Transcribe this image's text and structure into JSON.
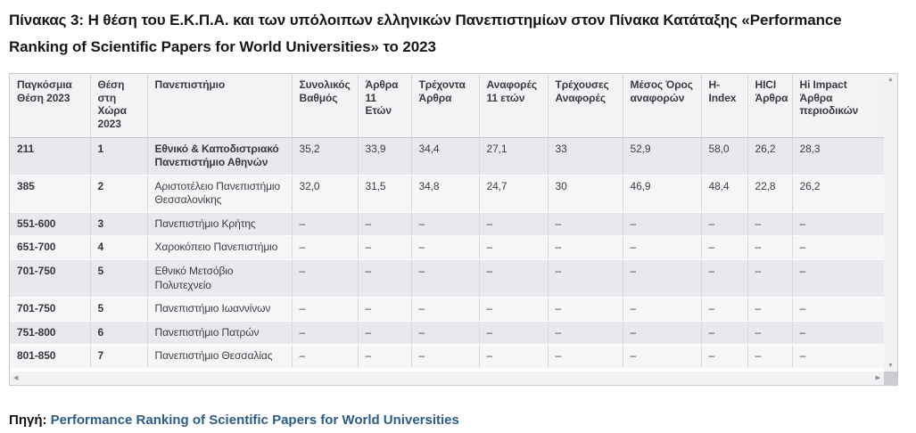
{
  "page": {
    "title_lines": [
      "Πίνακας 3: Η θέση του Ε.Κ.Π.Α. και των υπόλοιπων ελληνικών Πανεπιστημίων στον Πίνακα Κατάταξης «Performance",
      "Ranking of Scientific Papers for World Universities» το 2023"
    ],
    "source": {
      "label": "Πηγή:",
      "link_text": "Performance Ranking of Scientific Papers for World Universities"
    }
  },
  "table": {
    "columns": [
      "Παγκόσμια Θέση 2023",
      "Θέση στη Χώρα 2023",
      "Πανεπιστήμιο",
      "Συνολικός Βαθμός",
      "Άρθρα 11 Ετών",
      "Τρέχοντα Άρθρα",
      "Αναφορές 11 ετών",
      "Τρέχουσες Αναφορές",
      "Μέσος Όρος αναφορών",
      "H-Index",
      "HICI Άρθρα",
      "Hi Impact Άρθρα περιοδικών"
    ],
    "rows": [
      {
        "highlight": true,
        "cells": [
          "211",
          "1",
          "Εθνικό & Καποδιστριακό Πανεπιστήμιο Αθηνών",
          "35,2",
          "33,9",
          "34,4",
          "27,1",
          "33",
          "52,9",
          "58,0",
          "26,2",
          "28,3"
        ]
      },
      {
        "highlight": false,
        "cells": [
          "385",
          "2",
          "Αριστοτέλειο Πανεπιστήμιο Θεσσαλονίκης",
          "32,0",
          "31,5",
          "34,8",
          "24,7",
          "30",
          "46,9",
          "48,4",
          "22,8",
          "26,2"
        ]
      },
      {
        "highlight": false,
        "cells": [
          "551-600",
          "3",
          "Πανεπιστήμιο Κρήτης",
          "–",
          "–",
          "–",
          "–",
          "–",
          "–",
          "–",
          "–",
          "–"
        ]
      },
      {
        "highlight": false,
        "cells": [
          "651-700",
          "4",
          "Χαροκόπειο Πανεπιστήμιο",
          "–",
          "–",
          "–",
          "–",
          "–",
          "–",
          "–",
          "–",
          "–"
        ]
      },
      {
        "highlight": false,
        "cells": [
          "701-750",
          "5",
          "Εθνικό Μετσόβιο Πολυτεχνείο",
          "–",
          "–",
          "–",
          "–",
          "–",
          "–",
          "–",
          "–",
          "–"
        ]
      },
      {
        "highlight": false,
        "cells": [
          "701-750",
          "5",
          "Πανεπιστήμιο Ιωαννίνων",
          "–",
          "–",
          "–",
          "–",
          "–",
          "–",
          "–",
          "–",
          "–"
        ]
      },
      {
        "highlight": false,
        "cells": [
          "751-800",
          "6",
          "Πανεπιστήμιο Πατρών",
          "–",
          "–",
          "–",
          "–",
          "–",
          "–",
          "–",
          "–",
          "–"
        ]
      },
      {
        "highlight": false,
        "cells": [
          "801-850",
          "7",
          "Πανεπιστήμιο Θεσσαλίας",
          "–",
          "–",
          "–",
          "–",
          "–",
          "–",
          "–",
          "–",
          "–"
        ]
      }
    ]
  },
  "icons": {
    "scroll_up": "▲",
    "scroll_down": "▼",
    "scroll_left": "◀",
    "scroll_right": "▶"
  },
  "colors": {
    "link": "#2b5c88",
    "header_bg": "#f3f3f6",
    "row_odd_bg": "#e8e9ed",
    "row_even_bg": "#f6f6f8",
    "scrollbar_track": "#f2f2f4",
    "scrollbar_corner": "#cdcdd1"
  }
}
